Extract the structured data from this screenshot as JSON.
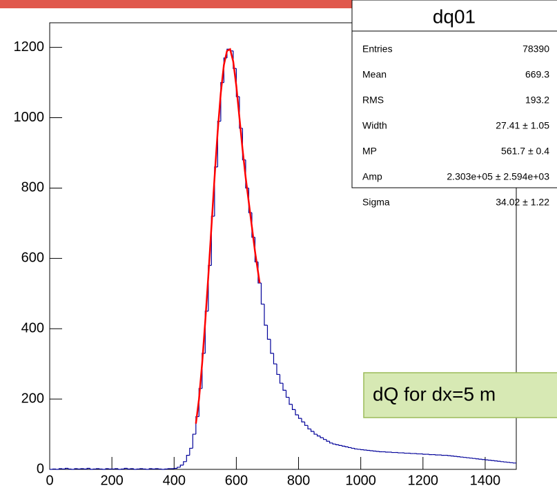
{
  "chart_data": {
    "type": "histogram",
    "bins": [
      0,
      10,
      20,
      30,
      40,
      50,
      60,
      70,
      80,
      90,
      100,
      110,
      120,
      130,
      140,
      150,
      160,
      170,
      180,
      190,
      200,
      210,
      220,
      230,
      240,
      250,
      260,
      270,
      280,
      290,
      300,
      310,
      320,
      330,
      340,
      350,
      360,
      370,
      380,
      390,
      400,
      410,
      420,
      430,
      440,
      450,
      460,
      470,
      480,
      490,
      500,
      510,
      520,
      530,
      540,
      550,
      560,
      570,
      580,
      590,
      600,
      610,
      620,
      630,
      640,
      650,
      660,
      670,
      680,
      690,
      700,
      710,
      720,
      730,
      740,
      750,
      760,
      770,
      780,
      790,
      800,
      810,
      820,
      830,
      840,
      850,
      860,
      870,
      880,
      890,
      900,
      910,
      920,
      930,
      940,
      950,
      960,
      970,
      980,
      990,
      1000,
      1010,
      1020,
      1030,
      1040,
      1050,
      1060,
      1070,
      1080,
      1090,
      1100,
      1110,
      1120,
      1130,
      1140,
      1150,
      1160,
      1170,
      1180,
      1190,
      1200,
      1210,
      1220,
      1230,
      1240,
      1250,
      1260,
      1270,
      1280,
      1290,
      1300,
      1310,
      1320,
      1330,
      1340,
      1350,
      1360,
      1370,
      1380,
      1390,
      1400,
      1410,
      1420,
      1430,
      1440,
      1450,
      1460,
      1470,
      1480,
      1490,
      1500
    ],
    "values": [
      0,
      1,
      0,
      2,
      1,
      3,
      1,
      0,
      2,
      1,
      2,
      1,
      3,
      0,
      1,
      2,
      1,
      0,
      2,
      1,
      1,
      2,
      0,
      1,
      3,
      1,
      2,
      0,
      1,
      2,
      1,
      0,
      2,
      1,
      2,
      1,
      0,
      1,
      2,
      2,
      3,
      6,
      12,
      22,
      40,
      60,
      100,
      150,
      230,
      330,
      450,
      580,
      720,
      860,
      990,
      1100,
      1170,
      1195,
      1190,
      1140,
      1060,
      970,
      880,
      800,
      730,
      660,
      590,
      530,
      470,
      410,
      370,
      330,
      300,
      270,
      245,
      225,
      205,
      185,
      170,
      155,
      145,
      135,
      125,
      115,
      108,
      100,
      95,
      90,
      85,
      80,
      75,
      72,
      70,
      68,
      66,
      64,
      62,
      60,
      58,
      57,
      56,
      55,
      54,
      53,
      52,
      51,
      50,
      50,
      49,
      49,
      48,
      48,
      47,
      47,
      46,
      46,
      45,
      45,
      44,
      44,
      43,
      43,
      42,
      42,
      41,
      41,
      40,
      40,
      39,
      38,
      37,
      36,
      35,
      34,
      33,
      32,
      31,
      30,
      29,
      28,
      27,
      26,
      25,
      24,
      23,
      22,
      21,
      20,
      19,
      18
    ],
    "color": "#000099",
    "fit": {
      "color": "#ff0000",
      "x": [
        470,
        480,
        490,
        500,
        510,
        520,
        530,
        540,
        550,
        560,
        570,
        580,
        590,
        600,
        610,
        620,
        630,
        640,
        650,
        660,
        670,
        675
      ],
      "values": [
        130,
        200,
        300,
        420,
        550,
        690,
        830,
        960,
        1070,
        1150,
        1190,
        1195,
        1160,
        1090,
        1000,
        910,
        830,
        760,
        690,
        620,
        560,
        530
      ]
    },
    "xlim": [
      0,
      1500
    ],
    "xticks": [
      0,
      200,
      400,
      600,
      800,
      1000,
      1200,
      1400
    ],
    "ylim": [
      0,
      1270
    ],
    "yticks": [
      0,
      200,
      400,
      600,
      800,
      1000,
      1200
    ],
    "stats_box": {
      "title": "dq01",
      "rows": [
        [
          "Entries",
          "78390"
        ],
        [
          "Mean",
          "669.3"
        ],
        [
          "RMS",
          "193.2"
        ],
        [
          "Width",
          "27.41 ± 1.05"
        ],
        [
          "MP",
          "561.7 ± 0.4"
        ],
        [
          "Amp",
          "2.303e+05 ± 2.594e+03"
        ],
        [
          "Sigma",
          "34.02 ± 1.22"
        ]
      ]
    },
    "annotation": "dQ for dx=5 m"
  }
}
